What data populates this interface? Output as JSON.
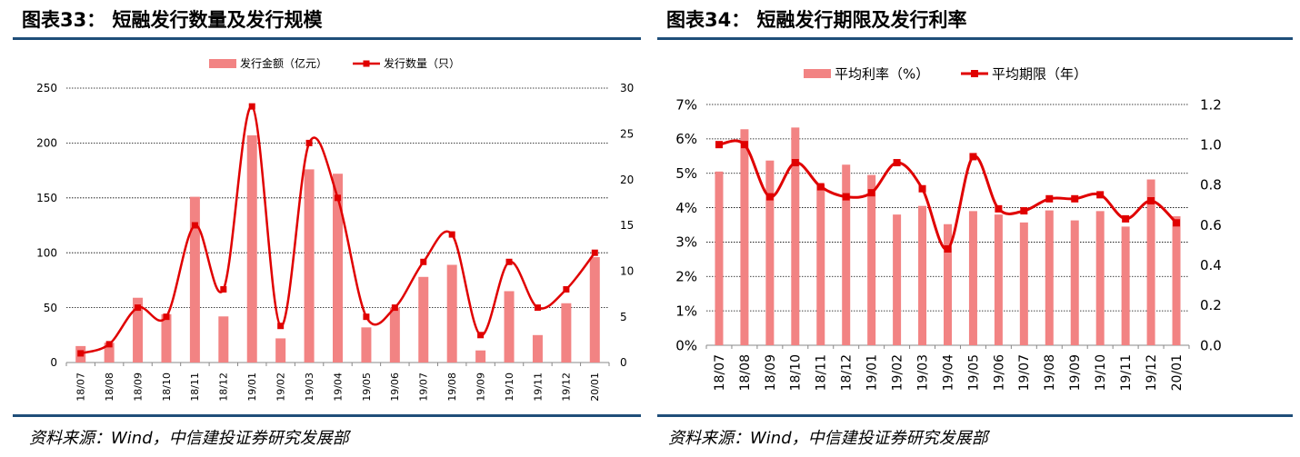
{
  "figures": [
    {
      "title": "图表33： 短融发行数量及发行规模",
      "source": "资料来源：Wind，中信建投证券研究发展部"
    },
    {
      "title": "图表34： 短融发行期限及发行利率",
      "source": "资料来源：Wind，中信建投证券研究发展部"
    }
  ],
  "colors": {
    "bar": "#f28383",
    "line": "#e00000",
    "rule": "#1f4e79",
    "grid": "#000000"
  },
  "chart_data": [
    {
      "type": "bar+line",
      "categories": [
        "18/07",
        "18/08",
        "18/09",
        "18/10",
        "18/11",
        "18/12",
        "19/01",
        "19/02",
        "19/03",
        "19/04",
        "19/05",
        "19/06",
        "19/07",
        "19/08",
        "19/09",
        "19/10",
        "19/11",
        "19/12",
        "20/01"
      ],
      "series": [
        {
          "name": "发行金额（亿元）",
          "type": "bar",
          "axis": "left",
          "values": [
            15,
            18,
            59,
            44,
            151,
            42,
            207,
            22,
            176,
            172,
            32,
            50,
            78,
            89,
            11,
            65,
            25,
            54,
            96
          ]
        },
        {
          "name": "发行数量（只）",
          "type": "line",
          "axis": "right",
          "values": [
            1,
            2,
            6,
            5,
            15,
            8,
            28,
            4,
            24,
            18,
            5,
            6,
            11,
            14,
            3,
            11,
            6,
            8,
            12
          ]
        }
      ],
      "y_left": {
        "min": 0,
        "max": 250,
        "ticks": [
          "0",
          "50",
          "100",
          "150",
          "200",
          "250"
        ]
      },
      "y_right": {
        "min": 0,
        "max": 30,
        "ticks": [
          "0",
          "5",
          "10",
          "15",
          "20",
          "25",
          "30"
        ]
      },
      "grid": "horizontal-dotted",
      "legend_position": "top"
    },
    {
      "type": "bar+line",
      "categories": [
        "18/07",
        "18/08",
        "18/09",
        "18/10",
        "18/11",
        "18/12",
        "19/01",
        "19/02",
        "19/03",
        "19/04",
        "19/05",
        "19/06",
        "19/07",
        "19/08",
        "19/09",
        "19/10",
        "19/11",
        "19/12",
        "20/01"
      ],
      "series": [
        {
          "name": "平均利率（%）",
          "type": "bar",
          "axis": "left",
          "values": [
            5.05,
            6.28,
            5.37,
            6.33,
            4.67,
            5.25,
            4.95,
            3.8,
            4.05,
            3.52,
            3.9,
            3.8,
            3.57,
            3.92,
            3.63,
            3.9,
            3.45,
            4.82,
            3.75
          ]
        },
        {
          "name": "平均期限（年）",
          "type": "line",
          "axis": "right",
          "values": [
            1.0,
            1.0,
            0.74,
            0.91,
            0.79,
            0.74,
            0.76,
            0.91,
            0.78,
            0.48,
            0.94,
            0.68,
            0.67,
            0.73,
            0.73,
            0.75,
            0.63,
            0.72,
            0.61
          ]
        }
      ],
      "y_left": {
        "min": 0,
        "max": 7,
        "ticks": [
          "0%",
          "1%",
          "2%",
          "3%",
          "4%",
          "5%",
          "6%",
          "7%"
        ]
      },
      "y_right": {
        "min": 0,
        "max": 1.2,
        "ticks": [
          "0.0",
          "0.2",
          "0.4",
          "0.6",
          "0.8",
          "1.0",
          "1.2"
        ]
      },
      "grid": "horizontal-dotted",
      "legend_position": "top"
    }
  ]
}
